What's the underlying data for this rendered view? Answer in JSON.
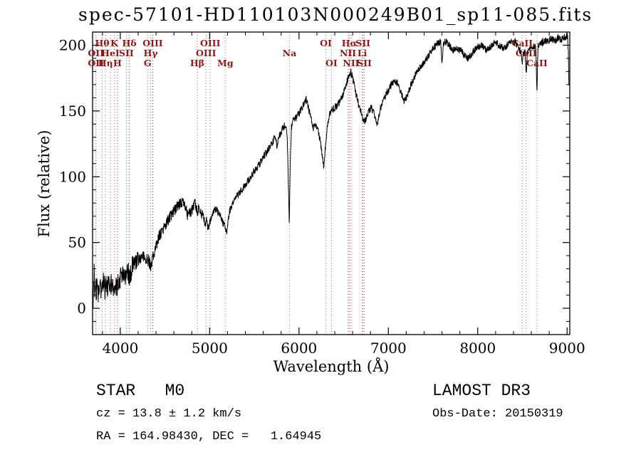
{
  "chart_data": {
    "type": "line",
    "title": "spec-57101-HD110103N000249B01_sp11-085.fits",
    "xlabel": "Wavelength (Å)",
    "ylabel": "Flux (relative)",
    "xlim": [
      3690,
      9030
    ],
    "ylim": [
      -20,
      210
    ],
    "grid": "off",
    "x_axis": {
      "major_ticks": [
        4000,
        5000,
        6000,
        7000,
        8000,
        9000
      ],
      "minor_step": 200
    },
    "y_axis": {
      "major_ticks": [
        0,
        50,
        100,
        150,
        200
      ],
      "minor_step": 10
    },
    "line_color": "#000000",
    "spectral_line_color": "#b05b5b",
    "spectral_label_color": "#8b1a1a",
    "spectral_lines": [
      {
        "wavelength": 3727,
        "label": "OII",
        "row": 2
      },
      {
        "wavelength": 3727,
        "label": "OII",
        "row": 3
      },
      {
        "wavelength": 3798,
        "label": "Hθ",
        "row": 1
      },
      {
        "wavelength": 3835,
        "label": "Hη",
        "row": 3
      },
      {
        "wavelength": 3889,
        "label": "HeI",
        "row": 2
      },
      {
        "wavelength": 3933,
        "label": "K",
        "row": 1
      },
      {
        "wavelength": 3968,
        "label": "H",
        "row": 3
      },
      {
        "wavelength": 4068,
        "label": "SII",
        "row": 2
      },
      {
        "wavelength": 4101,
        "label": "Hδ",
        "row": 1
      },
      {
        "wavelength": 4305,
        "label": "G",
        "row": 3
      },
      {
        "wavelength": 4340,
        "label": "Hγ",
        "row": 2
      },
      {
        "wavelength": 4363,
        "label": "OIII",
        "row": 1
      },
      {
        "wavelength": 4861,
        "label": "Hβ",
        "row": 3
      },
      {
        "wavelength": 4959,
        "label": "OIII",
        "row": 2
      },
      {
        "wavelength": 5007,
        "label": "OIII",
        "row": 1
      },
      {
        "wavelength": 5175,
        "label": "Mg",
        "row": 3
      },
      {
        "wavelength": 5893,
        "label": "Na",
        "row": 2
      },
      {
        "wavelength": 6300,
        "label": "OI",
        "row": 1
      },
      {
        "wavelength": 6363,
        "label": "OI",
        "row": 3
      },
      {
        "wavelength": 6548,
        "label": "NII",
        "row": 2
      },
      {
        "wavelength": 6563,
        "label": "Hα",
        "row": 1
      },
      {
        "wavelength": 6583,
        "label": "NII",
        "row": 3
      },
      {
        "wavelength": 6708,
        "label": "Li",
        "row": 2
      },
      {
        "wavelength": 6716,
        "label": "SII",
        "row": 1
      },
      {
        "wavelength": 6731,
        "label": "SII",
        "row": 3
      },
      {
        "wavelength": 8498,
        "label": "CaII",
        "row": 1
      },
      {
        "wavelength": 8542,
        "label": "CaII",
        "row": 2
      },
      {
        "wavelength": 8662,
        "label": "CaII",
        "row": 3
      }
    ],
    "spectrum": {
      "start": 3693,
      "end": 9022,
      "step": 2.5,
      "noise": {
        "blue": 8,
        "mid": 4.5,
        "red": 2.8
      },
      "anchors": [
        [
          3693,
          0
        ],
        [
          3700,
          12
        ],
        [
          3708,
          28
        ],
        [
          3716,
          4
        ],
        [
          3724,
          20
        ],
        [
          3732,
          10
        ],
        [
          3742,
          26
        ],
        [
          3752,
          8
        ],
        [
          3762,
          18
        ],
        [
          3772,
          24
        ],
        [
          3782,
          10
        ],
        [
          3792,
          20
        ],
        [
          3802,
          14
        ],
        [
          3815,
          22
        ],
        [
          3828,
          12
        ],
        [
          3840,
          19
        ],
        [
          3855,
          15
        ],
        [
          3870,
          21
        ],
        [
          3885,
          14
        ],
        [
          3900,
          20
        ],
        [
          3915,
          16
        ],
        [
          3930,
          11
        ],
        [
          3945,
          20
        ],
        [
          3960,
          15
        ],
        [
          3975,
          20
        ],
        [
          4000,
          23
        ],
        [
          4030,
          27
        ],
        [
          4060,
          24
        ],
        [
          4090,
          27
        ],
        [
          4101,
          24
        ],
        [
          4130,
          31
        ],
        [
          4170,
          34
        ],
        [
          4210,
          37
        ],
        [
          4250,
          39
        ],
        [
          4290,
          38
        ],
        [
          4320,
          36
        ],
        [
          4340,
          31
        ],
        [
          4360,
          38
        ],
        [
          4400,
          48
        ],
        [
          4440,
          55
        ],
        [
          4480,
          60
        ],
        [
          4520,
          65
        ],
        [
          4560,
          70
        ],
        [
          4600,
          74
        ],
        [
          4640,
          77
        ],
        [
          4680,
          80
        ],
        [
          4710,
          81
        ],
        [
          4730,
          77
        ],
        [
          4750,
          71
        ],
        [
          4770,
          75
        ],
        [
          4790,
          72
        ],
        [
          4810,
          76
        ],
        [
          4830,
          80
        ],
        [
          4850,
          76
        ],
        [
          4861,
          72
        ],
        [
          4880,
          78
        ],
        [
          4900,
          74
        ],
        [
          4925,
          70
        ],
        [
          4950,
          67
        ],
        [
          4975,
          64
        ],
        [
          5000,
          65
        ],
        [
          5025,
          70
        ],
        [
          5050,
          74
        ],
        [
          5075,
          75
        ],
        [
          5100,
          72
        ],
        [
          5125,
          69
        ],
        [
          5150,
          65
        ],
        [
          5170,
          62
        ],
        [
          5190,
          57
        ],
        [
          5205,
          66
        ],
        [
          5225,
          74
        ],
        [
          5255,
          79
        ],
        [
          5290,
          84
        ],
        [
          5330,
          87
        ],
        [
          5370,
          91
        ],
        [
          5410,
          95
        ],
        [
          5450,
          99
        ],
        [
          5490,
          103
        ],
        [
          5530,
          107
        ],
        [
          5570,
          111
        ],
        [
          5610,
          116
        ],
        [
          5650,
          120
        ],
        [
          5690,
          125
        ],
        [
          5725,
          129
        ],
        [
          5755,
          124
        ],
        [
          5780,
          131
        ],
        [
          5810,
          136
        ],
        [
          5840,
          139
        ],
        [
          5868,
          132
        ],
        [
          5880,
          95
        ],
        [
          5891,
          62
        ],
        [
          5902,
          110
        ],
        [
          5915,
          138
        ],
        [
          5940,
          143
        ],
        [
          5970,
          145
        ],
        [
          6000,
          148
        ],
        [
          6030,
          152
        ],
        [
          6060,
          157
        ],
        [
          6085,
          159
        ],
        [
          6110,
          151
        ],
        [
          6135,
          144
        ],
        [
          6160,
          137
        ],
        [
          6185,
          141
        ],
        [
          6210,
          136
        ],
        [
          6235,
          128
        ],
        [
          6258,
          118
        ],
        [
          6275,
          107
        ],
        [
          6295,
          122
        ],
        [
          6320,
          140
        ],
        [
          6350,
          149
        ],
        [
          6390,
          152
        ],
        [
          6430,
          154
        ],
        [
          6470,
          159
        ],
        [
          6500,
          164
        ],
        [
          6530,
          171
        ],
        [
          6555,
          176
        ],
        [
          6580,
          180
        ],
        [
          6600,
          175
        ],
        [
          6620,
          169
        ],
        [
          6645,
          161
        ],
        [
          6670,
          154
        ],
        [
          6695,
          148
        ],
        [
          6715,
          144
        ],
        [
          6735,
          142
        ],
        [
          6760,
          146
        ],
        [
          6785,
          150
        ],
        [
          6810,
          152
        ],
        [
          6835,
          149
        ],
        [
          6860,
          144
        ],
        [
          6880,
          139
        ],
        [
          6900,
          149
        ],
        [
          6930,
          156
        ],
        [
          6965,
          161
        ],
        [
          7000,
          166
        ],
        [
          7035,
          170
        ],
        [
          7070,
          173
        ],
        [
          7105,
          171
        ],
        [
          7140,
          164
        ],
        [
          7175,
          158
        ],
        [
          7205,
          160
        ],
        [
          7235,
          167
        ],
        [
          7270,
          173
        ],
        [
          7310,
          178
        ],
        [
          7355,
          183
        ],
        [
          7400,
          187
        ],
        [
          7450,
          192
        ],
        [
          7500,
          197
        ],
        [
          7545,
          201
        ],
        [
          7585,
          203
        ],
        [
          7600,
          187
        ],
        [
          7615,
          202
        ],
        [
          7650,
          203
        ],
        [
          7690,
          199
        ],
        [
          7730,
          196
        ],
        [
          7770,
          197
        ],
        [
          7810,
          196
        ],
        [
          7850,
          192
        ],
        [
          7890,
          190
        ],
        [
          7930,
          193
        ],
        [
          7970,
          197
        ],
        [
          8010,
          199
        ],
        [
          8050,
          200
        ],
        [
          8090,
          196
        ],
        [
          8130,
          198
        ],
        [
          8170,
          201
        ],
        [
          8210,
          202
        ],
        [
          8250,
          199
        ],
        [
          8290,
          197
        ],
        [
          8330,
          200
        ],
        [
          8370,
          202
        ],
        [
          8410,
          203
        ],
        [
          8450,
          199
        ],
        [
          8480,
          195
        ],
        [
          8490,
          195
        ],
        [
          8498,
          184
        ],
        [
          8508,
          195
        ],
        [
          8530,
          194
        ],
        [
          8542,
          176
        ],
        [
          8554,
          195
        ],
        [
          8590,
          197
        ],
        [
          8620,
          199
        ],
        [
          8650,
          198
        ],
        [
          8662,
          163
        ],
        [
          8674,
          199
        ],
        [
          8700,
          201
        ],
        [
          8740,
          203
        ],
        [
          8780,
          203
        ],
        [
          8820,
          205
        ],
        [
          8860,
          203
        ],
        [
          8900,
          206
        ],
        [
          8940,
          204
        ],
        [
          8975,
          206
        ],
        [
          9000,
          207
        ],
        [
          9008,
          204
        ],
        [
          9015,
          192
        ],
        [
          9022,
          160
        ]
      ]
    }
  },
  "annotations": {
    "class_line": "STAR   M0",
    "survey": "LAMOST DR3",
    "cz_line": "cz = 13.8 ± 1.2 km/s",
    "obs_date": "Obs-Date: 20150319",
    "radec_line": "RA = 164.98430, DEC =   1.64945"
  }
}
